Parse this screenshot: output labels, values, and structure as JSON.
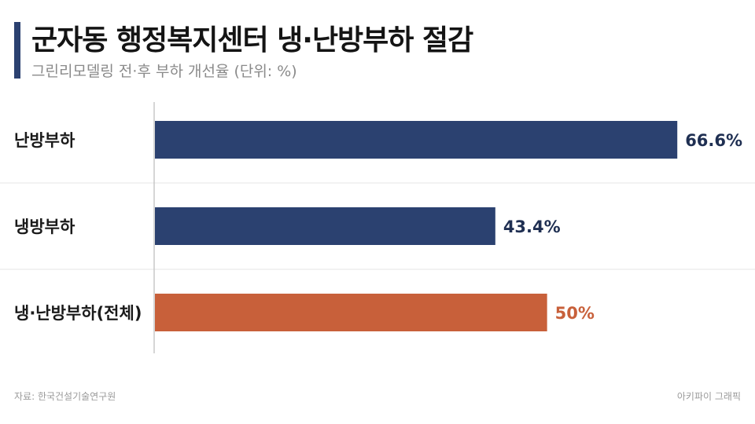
{
  "title": "군자동 행정복지센터 냉·난방부하 절감",
  "subtitle": "그린리모델링 전·후 부하 개선율 (단위: %)",
  "source": "자료: 한국건설기술연구원",
  "brand": "아키파이 그래픽",
  "chart_data": {
    "type": "bar",
    "orientation": "horizontal",
    "categories": [
      "난방부하",
      "냉방부하",
      "냉·난방부하(전체)"
    ],
    "values": [
      66.6,
      43.4,
      50
    ],
    "value_labels": [
      "66.6%",
      "43.4%",
      "50%"
    ],
    "xlim": [
      0,
      74
    ],
    "colors": [
      "#2b4170",
      "#2b4170",
      "#c8603a"
    ],
    "label_colors": [
      "#1f2f52",
      "#1f2f52",
      "#c8603a"
    ],
    "grid": false,
    "legend": "none"
  }
}
